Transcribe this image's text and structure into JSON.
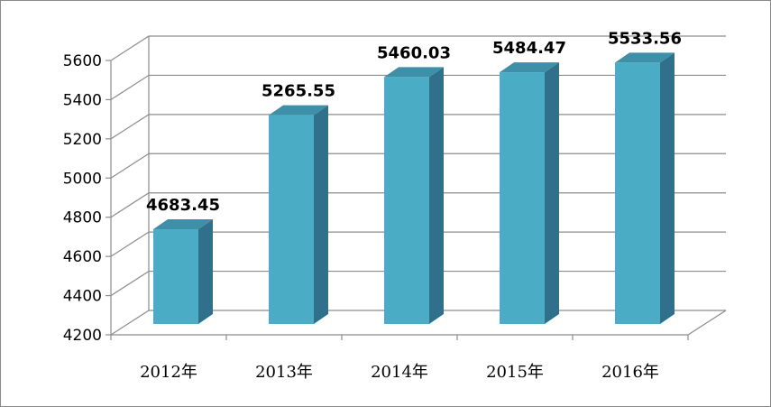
{
  "chart_data": {
    "type": "bar",
    "style": "3d-column",
    "categories": [
      "2012年",
      "2013年",
      "2014年",
      "2015年",
      "2016年"
    ],
    "values": [
      4683.45,
      5265.55,
      5460.03,
      5484.47,
      5533.56
    ],
    "data_labels": [
      "4683.45",
      "5265.55",
      "5460.03",
      "5484.47",
      "5533.56"
    ],
    "ylim": [
      4200,
      5600
    ],
    "yticks": [
      "4200",
      "4400",
      "4600",
      "4800",
      "5000",
      "5200",
      "5400",
      "5600"
    ],
    "title": "",
    "xlabel": "",
    "ylabel": "",
    "grid": true,
    "legend": "none",
    "colors": {
      "bar_front": "#4BACC6",
      "bar_side": "#31708A",
      "bar_top": "#3E8FA8",
      "grid": "#8c8c8c",
      "axis": "#8c8c8c"
    }
  }
}
